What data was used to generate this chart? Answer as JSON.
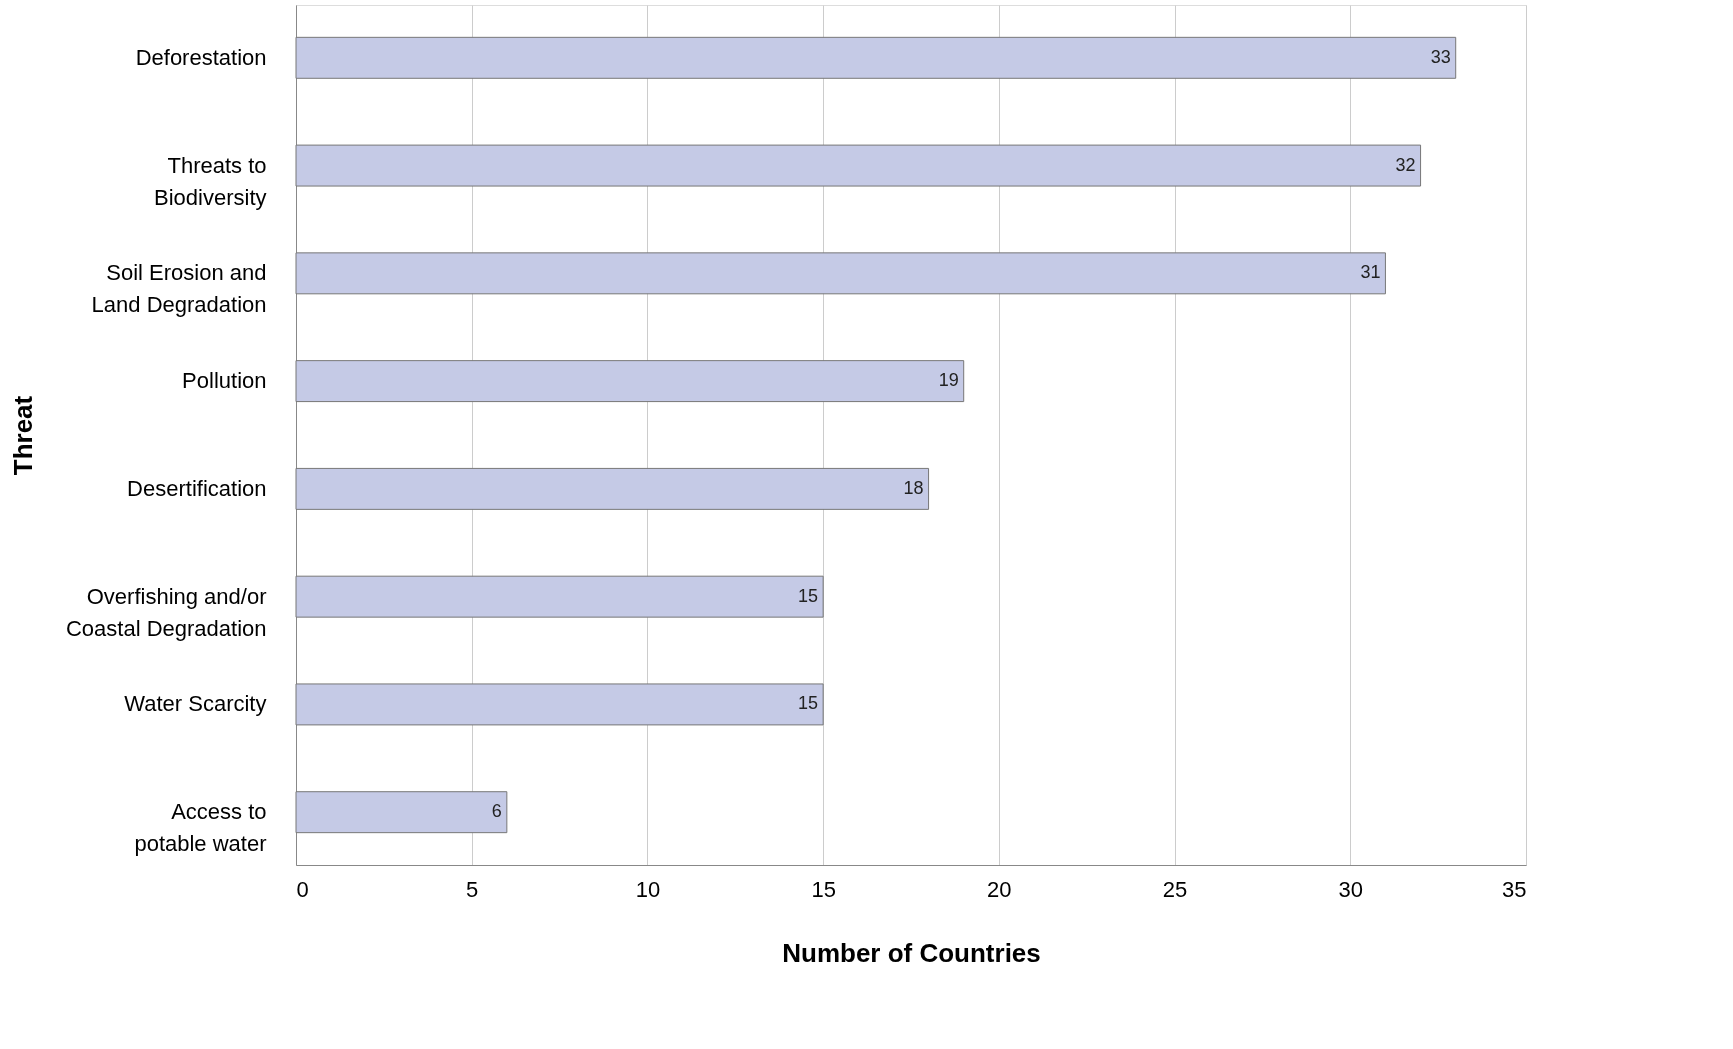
{
  "chart_data": {
    "type": "bar",
    "orientation": "horizontal",
    "xlabel": "Number of Countries",
    "ylabel": "Threat",
    "categories": [
      "Deforestation",
      "Threats to Biodiversity",
      "Soil Erosion and Land Degradation",
      "Pollution",
      "Desertification",
      "Overfishing and/or Coastal Degradation",
      "Water Scarcity",
      "Access to potable water"
    ],
    "values": [
      33,
      32,
      31,
      19,
      18,
      15,
      15,
      6
    ],
    "color": "#c5cae6",
    "xlim": [
      0,
      35
    ],
    "xticks": [
      0,
      5,
      10,
      15,
      20,
      25,
      30,
      35
    ],
    "grid": "x",
    "data_labels": true
  }
}
